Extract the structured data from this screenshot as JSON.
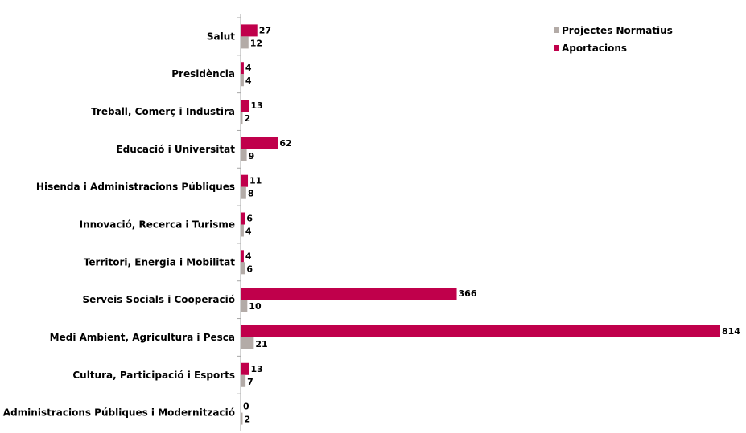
{
  "chart_data": {
    "type": "bar",
    "orientation": "horizontal",
    "categories": [
      "Salut",
      "Presidència",
      "Treball, Comerç i Industira",
      "Educació i Universitat",
      "Hisenda i Administracions Públiques",
      "Innovació, Recerca i Turisme",
      "Territori, Energia i Mobilitat",
      "Serveis Socials i Cooperació",
      "Medi Ambient, Agricultura i Pesca",
      "Cultura, Participació i Esports",
      "Administracions Públiques i Modernització"
    ],
    "series": [
      {
        "name": "Aportacions",
        "color": "#c0004b",
        "values": [
          27,
          4,
          13,
          62,
          11,
          6,
          4,
          366,
          814,
          13,
          0
        ]
      },
      {
        "name": "Projectes Normatius",
        "color": "#b3aba7",
        "values": [
          12,
          4,
          2,
          9,
          8,
          4,
          6,
          10,
          21,
          7,
          2
        ]
      }
    ],
    "xlim": [
      0,
      814
    ],
    "grid": false,
    "data_labels": true,
    "legend_position": "top-right",
    "legend_order": [
      "Projectes Normatius",
      "Aportacions"
    ]
  }
}
